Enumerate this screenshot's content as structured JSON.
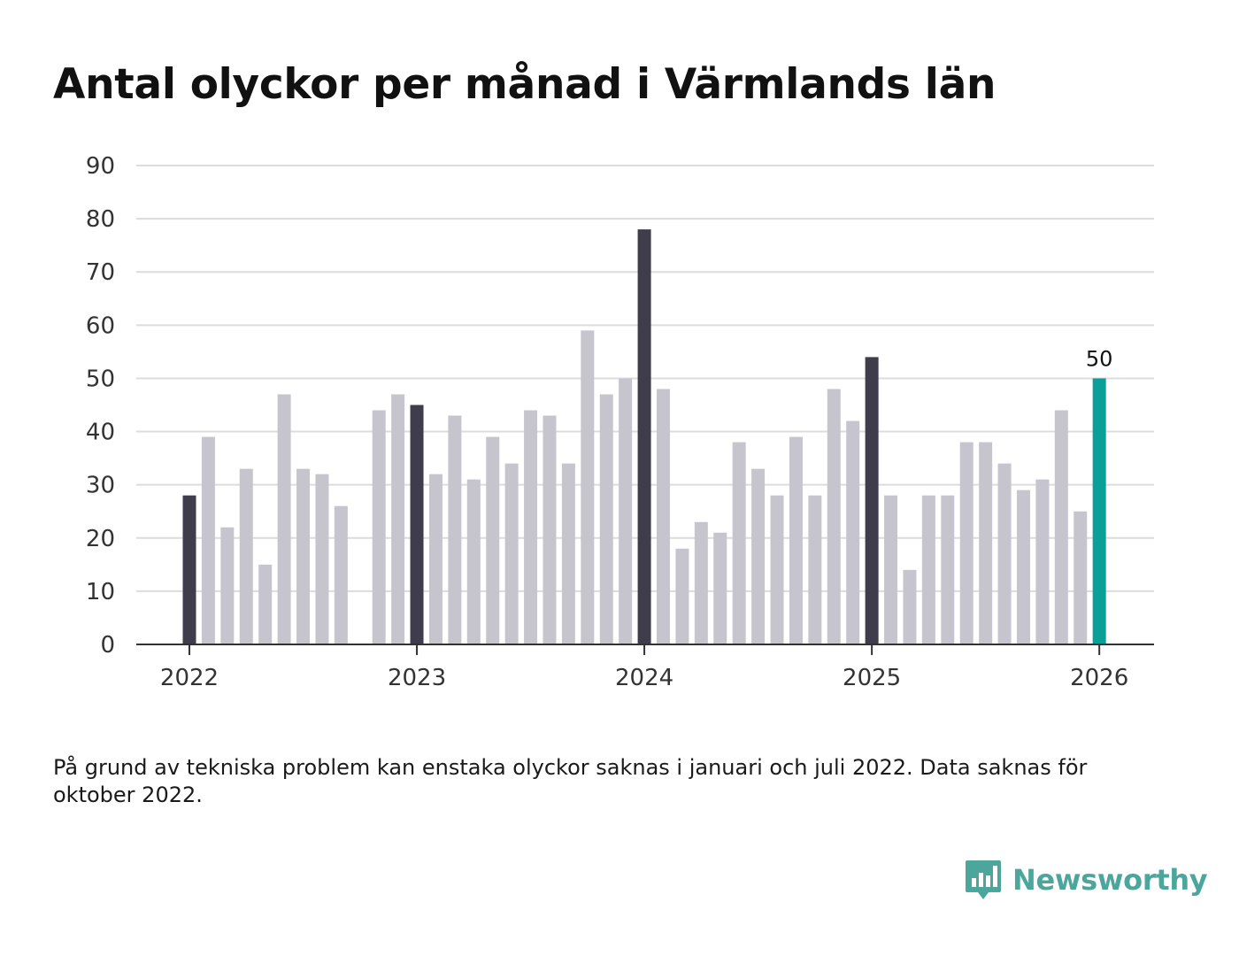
{
  "chart_data": {
    "type": "bar",
    "title": "Antal olyckor per månad i Värmlands län",
    "xlabel": "",
    "ylabel": "",
    "ylim": [
      0,
      90
    ],
    "yticks": [
      0,
      10,
      20,
      30,
      40,
      50,
      60,
      70,
      80,
      90
    ],
    "xticks": [
      "2022",
      "2023",
      "2024",
      "2025",
      "2026"
    ],
    "grid": true,
    "highlight_color": "#0a9f97",
    "january_color": "#3f3d4b",
    "other_color": "#c6c5cd",
    "categories": [
      "2022-01",
      "2022-02",
      "2022-03",
      "2022-04",
      "2022-05",
      "2022-06",
      "2022-07",
      "2022-08",
      "2022-09",
      "2022-10",
      "2022-11",
      "2022-12",
      "2023-01",
      "2023-02",
      "2023-03",
      "2023-04",
      "2023-05",
      "2023-06",
      "2023-07",
      "2023-08",
      "2023-09",
      "2023-10",
      "2023-11",
      "2023-12",
      "2024-01",
      "2024-02",
      "2024-03",
      "2024-04",
      "2024-05",
      "2024-06",
      "2024-07",
      "2024-08",
      "2024-09",
      "2024-10",
      "2024-11",
      "2024-12",
      "2025-01",
      "2025-02",
      "2025-03",
      "2025-04",
      "2025-05",
      "2025-06",
      "2025-07",
      "2025-08",
      "2025-09",
      "2025-10",
      "2025-11",
      "2025-12",
      "2026-01"
    ],
    "values": [
      28,
      39,
      22,
      33,
      15,
      47,
      33,
      32,
      26,
      null,
      44,
      47,
      45,
      32,
      43,
      31,
      39,
      34,
      44,
      43,
      34,
      59,
      47,
      50,
      78,
      48,
      18,
      23,
      21,
      38,
      33,
      28,
      39,
      28,
      48,
      42,
      54,
      28,
      14,
      28,
      28,
      38,
      38,
      34,
      29,
      31,
      44,
      25,
      50
    ],
    "annotations": [
      {
        "category": "2026-01",
        "text": "50"
      }
    ]
  },
  "footnote": "På grund av tekniska problem kan enstaka olyckor saknas i januari och juli 2022. Data saknas för oktober 2022.",
  "brand": {
    "name": "Newsworthy",
    "color": "#4ca69c"
  }
}
